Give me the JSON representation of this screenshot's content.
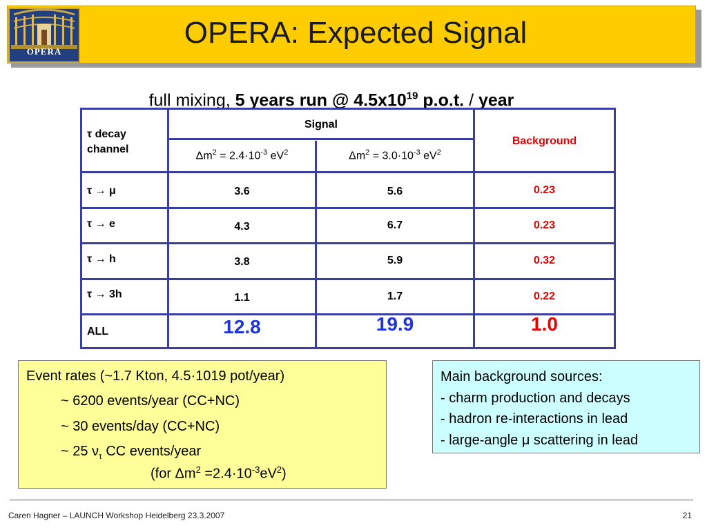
{
  "header": {
    "title": "OPERA: Expected Signal",
    "logo_text": "OPERA",
    "logo_icon": "opera-theatre-logo"
  },
  "subtitle": {
    "prefix": "full mixing, ",
    "bold1": "5 years run @ 4.5x10",
    "exp": "19",
    "bold2": " p.o.t.",
    "sep": " / ",
    "bold3": "year"
  },
  "table": {
    "corner_sym": "τ",
    "corner_word": " decay",
    "corner_line2": "channel",
    "signal_header": "Signal",
    "background_header": "Background",
    "col1_header": {
      "a": "Δm",
      "p1": "2",
      "b": " = 2.4·10",
      "p2": "-3",
      "c": " eV",
      "p3": "2"
    },
    "col2_header": {
      "a": "Δm",
      "p1": "2",
      "b": " = 3.0·10",
      "p2": "-3",
      "c": " eV",
      "p3": "2"
    },
    "rows": [
      {
        "channel": "τ → μ",
        "s1": "3.6",
        "s2": "5.6",
        "bg": "0.23"
      },
      {
        "channel": "τ → e",
        "s1": "4.3",
        "s2": "6.7",
        "bg": "0.23"
      },
      {
        "channel": "τ → h",
        "s1": "3.8",
        "s2": "5.9",
        "bg": "0.32"
      },
      {
        "channel": "τ → 3h",
        "s1": "1.1",
        "s2": "1.7",
        "bg": "0.22"
      }
    ],
    "total": {
      "channel": "ALL",
      "s1": "12.8",
      "s2": "19.9",
      "bg": "1.0"
    }
  },
  "rates_box": {
    "line1": "Event rates (~1.7 Kton, 4.5·1019 pot/year)",
    "line2": "~ 6200 events/year (CC+NC)",
    "line3": "~ 30 events/day (CC+NC)",
    "line4_a": "~ 25 ν",
    "line4_sub": "τ",
    "line4_b": " CC events/year",
    "line5_a": "(for Δm",
    "line5_p1": "2",
    "line5_b": " =2.4·10",
    "line5_p2": "-3",
    "line5_c": "eV",
    "line5_p3": "2",
    "line5_d": ")"
  },
  "background_box": {
    "line1": "Main background sources:",
    "line2": "- charm production and decays",
    "line3": "- hadron re-interactions in lead",
    "line4": "- large-angle μ scattering in lead"
  },
  "footer": {
    "left": "Caren Hagner – LAUNCH Workshop Heidelberg 23.3.2007",
    "page": "21"
  },
  "colors": {
    "title_bar": "#ffcc00",
    "table_lines": "#3a3ea0",
    "background_values": "#e60000",
    "totals_blue": "#1f33e0",
    "rates_box": "#ffff99",
    "sources_box": "#ccffff"
  }
}
